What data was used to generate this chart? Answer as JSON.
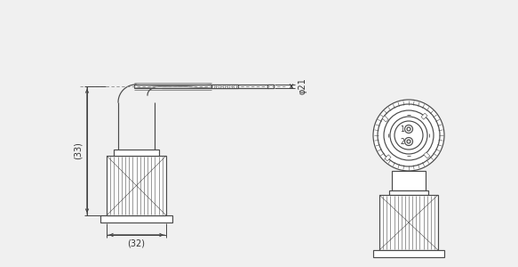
{
  "bg_color": "#f0f0f0",
  "line_color": "#4a4a4a",
  "dim_color": "#444444",
  "lw": 0.85,
  "tlw": 1.1,
  "slw": 0.4,
  "fig_width": 5.83,
  "fig_height": 3.0,
  "dpi": 100,
  "dim_33_label": "(33)",
  "dim_32_label": "(32)",
  "dim_phi21_label": "φ21"
}
